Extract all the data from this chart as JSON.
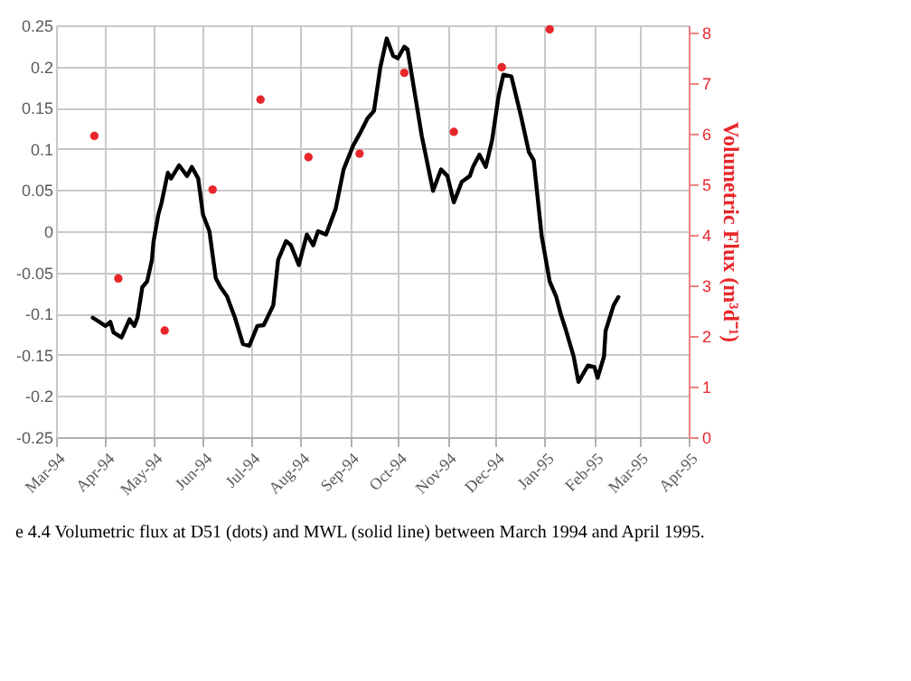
{
  "chart_data": {
    "type": "line",
    "y2label": "Volumetric Flux (m³d⁻¹)",
    "annotations": [
      "e 4.4 Volumetric flux at D51 (dots) and MWL (solid line) between March 1994 and April 1995."
    ],
    "xlim": [
      "1994-03-01",
      "1995-04-01"
    ],
    "xticks": [
      {
        "value": "1994-03-01",
        "label": "Mar-94"
      },
      {
        "value": "1994-04-01",
        "label": "Apr-94"
      },
      {
        "value": "1994-05-01",
        "label": "May-94"
      },
      {
        "value": "1994-06-01",
        "label": "Jun-94"
      },
      {
        "value": "1994-07-01",
        "label": "Jul-94"
      },
      {
        "value": "1994-08-01",
        "label": "Aug-94"
      },
      {
        "value": "1994-09-01",
        "label": "Sep-94"
      },
      {
        "value": "1994-10-01",
        "label": "Oct-94"
      },
      {
        "value": "1994-11-01",
        "label": "Nov-94"
      },
      {
        "value": "1994-12-01",
        "label": "Dec-94"
      },
      {
        "value": "1995-01-01",
        "label": "Jan-95"
      },
      {
        "value": "1995-02-01",
        "label": "Feb-95"
      },
      {
        "value": "1995-03-01",
        "label": "Mar-95"
      },
      {
        "value": "1995-04-01",
        "label": "Apr-95"
      }
    ],
    "ylim": [
      -0.25,
      0.25
    ],
    "yticks": [
      -0.25,
      -0.2,
      -0.15,
      -0.1,
      -0.05,
      0,
      0.05,
      0.1,
      0.15,
      0.2,
      0.25
    ],
    "y2lim": [
      0,
      8.15
    ],
    "y2ticks": [
      0,
      1,
      2,
      3,
      4,
      5,
      6,
      7,
      8
    ],
    "grid": true,
    "series": [
      {
        "color": "#000000",
        "x": [
          "1994-03-24",
          "1994-04-01",
          "1994-04-04",
          "1994-04-06",
          "1994-04-11",
          "1994-04-16",
          "1994-04-19",
          "1994-04-21",
          "1994-04-24",
          "1994-04-27",
          "1994-04-30",
          "1994-05-01",
          "1994-05-04",
          "1994-05-06",
          "1994-05-10",
          "1994-05-12",
          "1994-05-17",
          "1994-05-22",
          "1994-05-25",
          "1994-05-29",
          "1994-06-01",
          "1994-06-05",
          "1994-06-09",
          "1994-06-12",
          "1994-06-16",
          "1994-06-21",
          "1994-06-26",
          "1994-06-30",
          "1994-07-05",
          "1994-07-09",
          "1994-07-15",
          "1994-07-18",
          "1994-07-23",
          "1994-07-26",
          "1994-07-31",
          "1994-08-05",
          "1994-08-09",
          "1994-08-12",
          "1994-08-17",
          "1994-08-23",
          "1994-08-28",
          "1994-09-03",
          "1994-09-07",
          "1994-09-12",
          "1994-09-16",
          "1994-09-20",
          "1994-09-24",
          "1994-09-28",
          "1994-10-01",
          "1994-10-05",
          "1994-10-07",
          "1994-10-12",
          "1994-10-16",
          "1994-10-23",
          "1994-10-28",
          "1994-11-01",
          "1994-11-05",
          "1994-11-10",
          "1994-11-15",
          "1994-11-17",
          "1994-11-21",
          "1994-11-25",
          "1994-11-29",
          "1994-12-03",
          "1994-12-06",
          "1994-12-11",
          "1994-12-17",
          "1994-12-22",
          "1994-12-25",
          "1994-12-30",
          "1995-01-04",
          "1995-01-08",
          "1995-01-11",
          "1995-01-14",
          "1995-01-19",
          "1995-01-22",
          "1995-01-28",
          "1995-02-01",
          "1995-02-03",
          "1995-02-07",
          "1995-02-08",
          "1995-02-13",
          "1995-02-16"
        ],
        "values": [
          -0.105,
          -0.115,
          -0.11,
          -0.123,
          -0.129,
          -0.107,
          -0.115,
          -0.105,
          -0.068,
          -0.061,
          -0.035,
          -0.013,
          0.02,
          0.034,
          0.071,
          0.064,
          0.08,
          0.067,
          0.078,
          0.064,
          0.02,
          0.0,
          -0.057,
          -0.068,
          -0.079,
          -0.105,
          -0.137,
          -0.139,
          -0.115,
          -0.114,
          -0.09,
          -0.035,
          -0.012,
          -0.017,
          -0.041,
          -0.004,
          -0.017,
          0.0,
          -0.004,
          0.027,
          0.075,
          0.104,
          0.118,
          0.137,
          0.146,
          0.199,
          0.234,
          0.213,
          0.21,
          0.224,
          0.221,
          0.162,
          0.115,
          0.049,
          0.075,
          0.067,
          0.035,
          0.06,
          0.067,
          0.078,
          0.093,
          0.078,
          0.111,
          0.164,
          0.19,
          0.188,
          0.14,
          0.096,
          0.086,
          -0.006,
          -0.061,
          -0.079,
          -0.101,
          -0.119,
          -0.152,
          -0.183,
          -0.163,
          -0.165,
          -0.178,
          -0.152,
          -0.121,
          -0.09,
          -0.08
        ]
      },
      {
        "type": "scatter",
        "axis": "y2",
        "color": "#e8262a",
        "x": [
          "1994-03-25",
          "1994-04-09",
          "1994-05-08",
          "1994-06-07",
          "1994-07-07",
          "1994-08-06",
          "1994-09-07",
          "1994-10-05",
          "1994-11-05",
          "1994-12-05",
          "1995-01-04"
        ],
        "values": [
          5.96,
          3.14,
          2.11,
          4.9,
          6.68,
          5.54,
          5.61,
          7.21,
          6.04,
          7.32,
          8.07
        ]
      }
    ]
  }
}
